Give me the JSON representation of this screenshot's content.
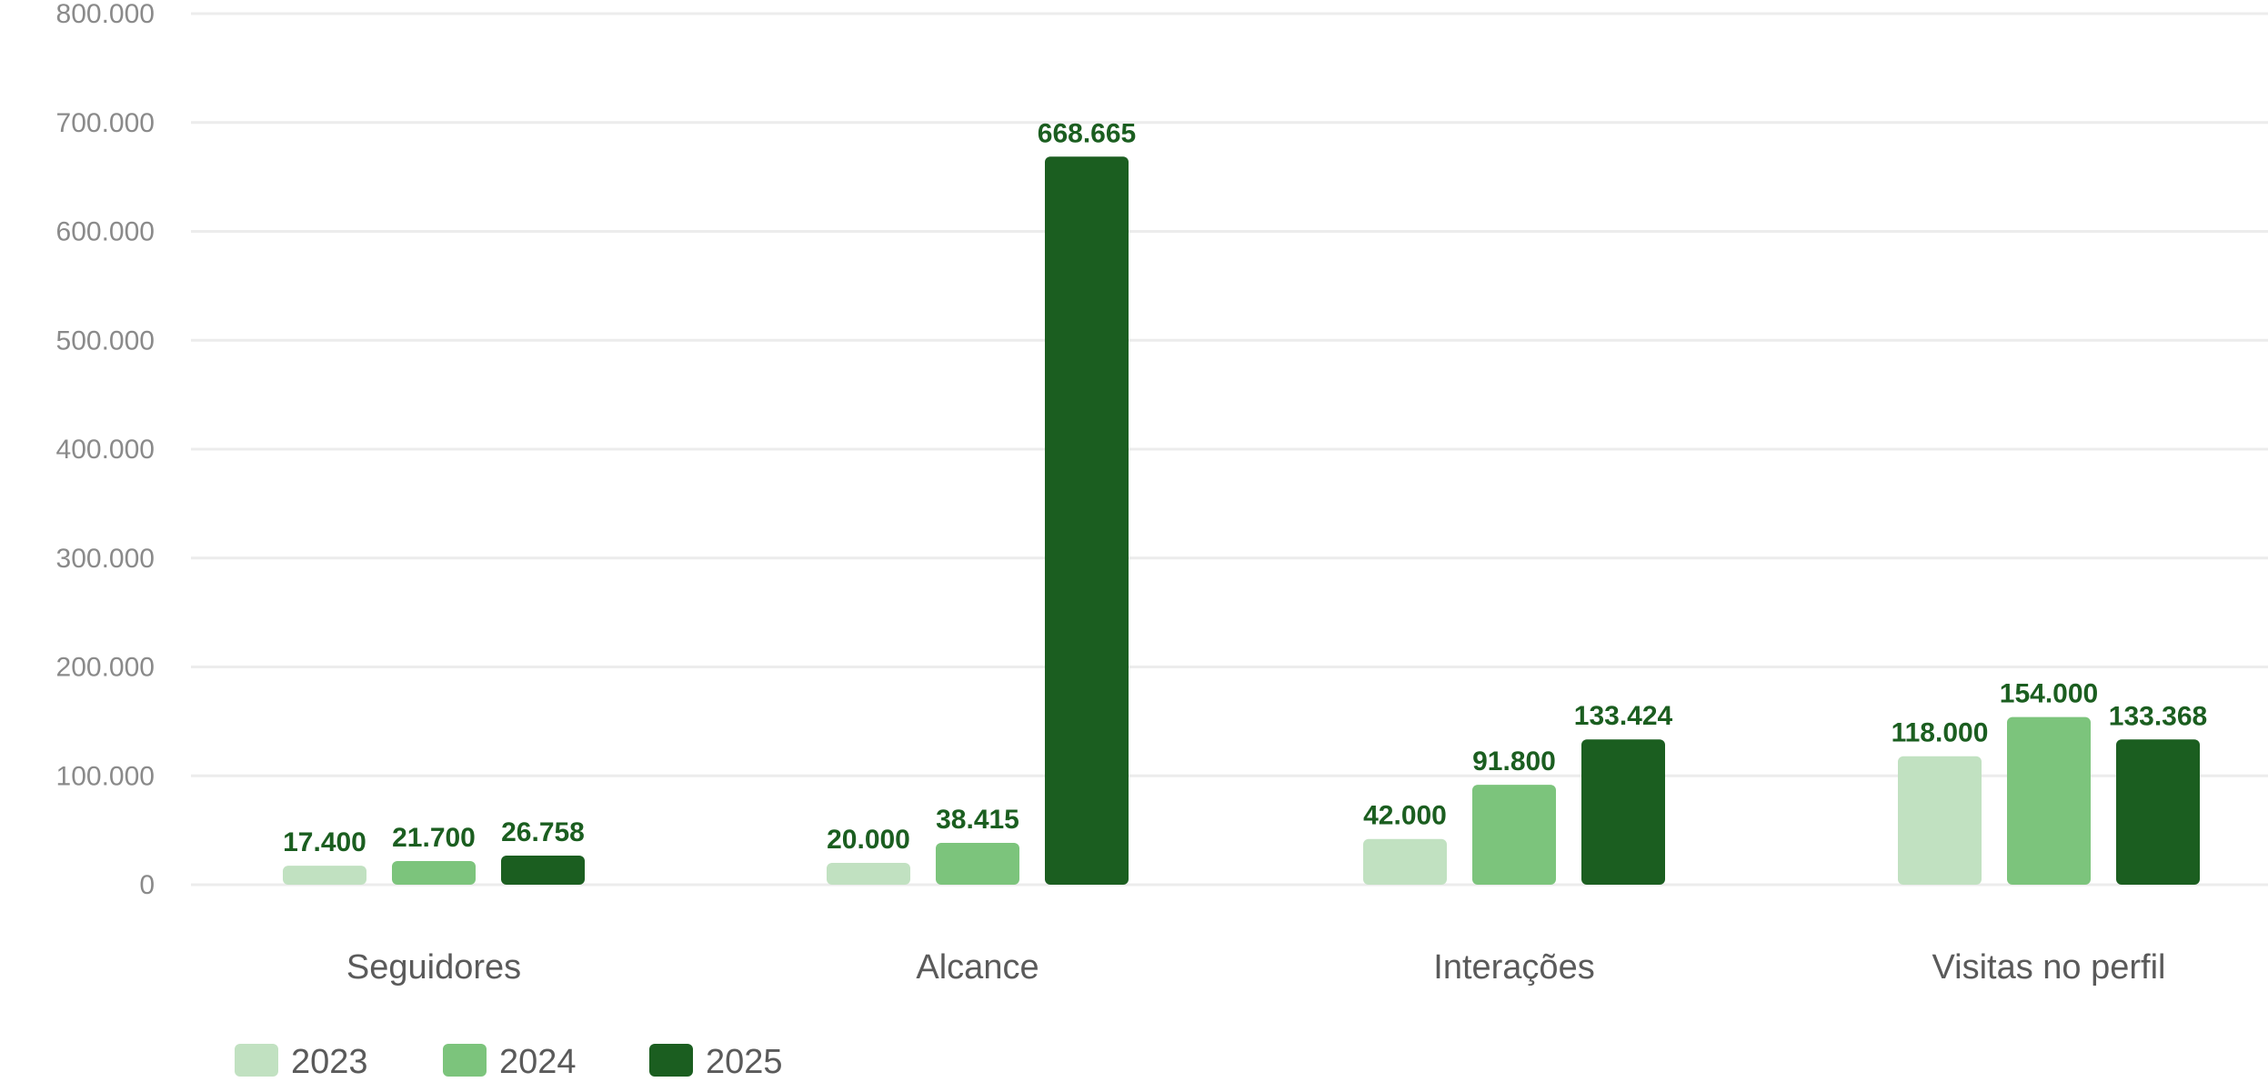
{
  "chart_data": {
    "type": "bar",
    "categories": [
      "Seguidores",
      "Alcance",
      "Interações",
      "Visitas no perfil"
    ],
    "series": [
      {
        "name": "2023",
        "color": "#c1e1c1",
        "values": [
          17400,
          20000,
          42000,
          118000
        ],
        "labels": [
          "17.400",
          "20.000",
          "42.000",
          "118.000"
        ]
      },
      {
        "name": "2024",
        "color": "#7cc47c",
        "values": [
          21700,
          38415,
          91800,
          154000
        ],
        "labels": [
          "21.700",
          "38.415",
          "91.800",
          "154.000"
        ]
      },
      {
        "name": "2025",
        "color": "#1b5e20",
        "values": [
          26758,
          668665,
          133424,
          133368
        ],
        "labels": [
          "26.758",
          "668.665",
          "133.424",
          "133.368"
        ]
      }
    ],
    "y_ticks": [
      "800.000",
      "700.000",
      "600.000",
      "500.000",
      "400.000",
      "300.000",
      "200.000",
      "100.000",
      "0"
    ],
    "y_tick_values": [
      800000,
      700000,
      600000,
      500000,
      400000,
      300000,
      200000,
      100000,
      0
    ],
    "ylim": [
      0,
      800000
    ],
    "title": "",
    "xlabel": "",
    "ylabel": "",
    "grid": true,
    "legend_position": "bottom-left",
    "label_color": "#1b5e20",
    "grid_color": "#ececec"
  }
}
